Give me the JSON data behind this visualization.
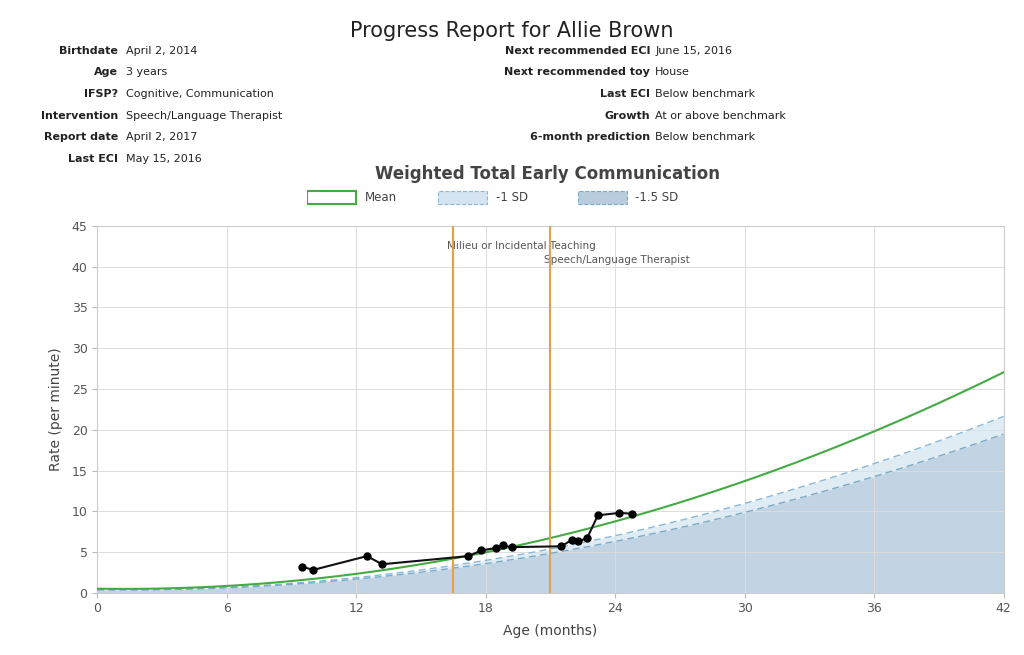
{
  "title": "Progress Report for Allie Brown",
  "chart_title": "Weighted Total Early Communication",
  "info_left": [
    [
      "Birthdate",
      "April 2, 2014"
    ],
    [
      "Age",
      "3 years"
    ],
    [
      "IFSP?",
      "Cognitive, Communication"
    ],
    [
      "Intervention",
      "Speech/Language Therapist"
    ],
    [
      "Report date",
      "April 2, 2017"
    ],
    [
      "Last ECI",
      "May 15, 2016"
    ]
  ],
  "info_right": [
    [
      "Next recommended ECI",
      "June 15, 2016"
    ],
    [
      "Next recommended toy",
      "House"
    ],
    [
      "Last ECI",
      "Below benchmark"
    ],
    [
      "Growth",
      "At or above benchmark"
    ],
    [
      "6-month prediction",
      "Below benchmark"
    ]
  ],
  "xlabel": "Age (months)",
  "ylabel": "Rate (per minute)",
  "xlim": [
    0,
    42
  ],
  "ylim": [
    0,
    45
  ],
  "xticks": [
    0,
    6,
    12,
    18,
    24,
    30,
    36,
    42
  ],
  "yticks": [
    0,
    5,
    10,
    15,
    20,
    25,
    30,
    35,
    40,
    45
  ],
  "mean_color": "#44aa44",
  "intervention_lines": [
    {
      "x": 16.5,
      "label": "Milieu or Incidental Teaching"
    },
    {
      "x": 21.0,
      "label": "Speech/Language Therapist"
    }
  ],
  "intervention_color": "#e8a040",
  "child_data": [
    [
      9.5,
      3.2
    ],
    [
      10.0,
      2.8
    ],
    [
      12.5,
      4.5
    ],
    [
      13.2,
      3.5
    ],
    [
      17.2,
      4.5
    ],
    [
      17.8,
      5.2
    ],
    [
      18.5,
      5.5
    ],
    [
      18.8,
      5.8
    ],
    [
      19.2,
      5.6
    ],
    [
      21.5,
      5.7
    ],
    [
      22.0,
      6.5
    ],
    [
      22.3,
      6.3
    ],
    [
      22.7,
      6.7
    ],
    [
      23.2,
      9.5
    ],
    [
      24.2,
      9.8
    ],
    [
      24.8,
      9.7
    ]
  ],
  "child_color": "#111111",
  "background_color": "#ffffff",
  "grid_color": "#dddddd",
  "fill_color_bottom": "#b8ccde",
  "fill_color_top": "#d4e4f0"
}
